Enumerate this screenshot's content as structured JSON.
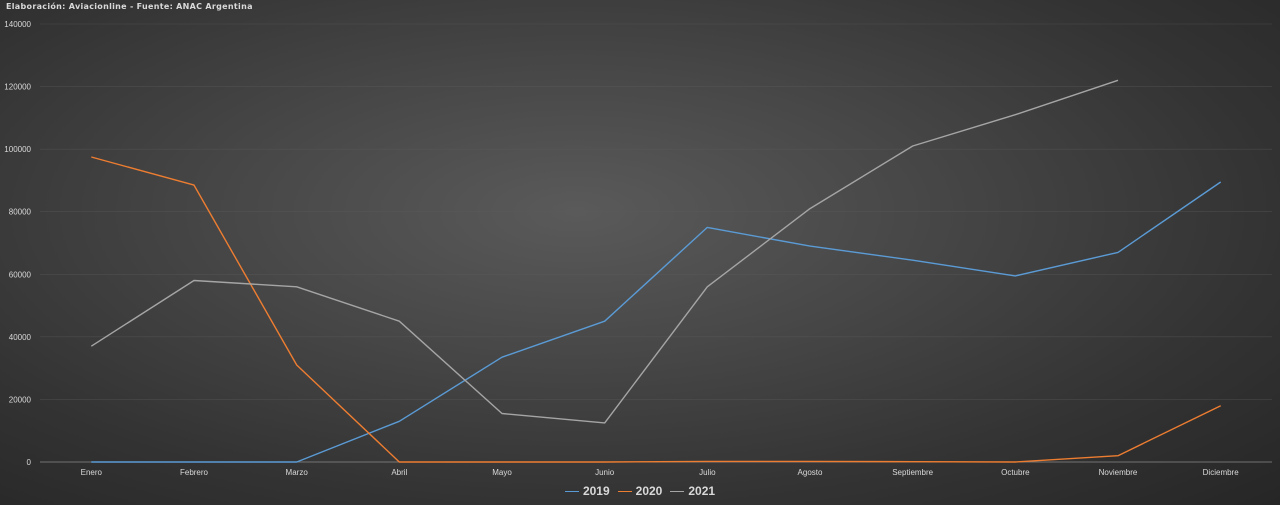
{
  "source_note": "Elaboración: Aviacionline - Fuente: ANAC Argentina",
  "chart_data": {
    "type": "line",
    "title": "",
    "xlabel": "",
    "ylabel": "",
    "categories": [
      "Enero",
      "Febrero",
      "Marzo",
      "Abril",
      "Mayo",
      "Junio",
      "Julio",
      "Agosto",
      "Septiembre",
      "Octubre",
      "Noviembre",
      "Diciembre"
    ],
    "ylim": [
      0,
      140000
    ],
    "yticks": [
      0,
      20000,
      40000,
      60000,
      80000,
      100000,
      120000,
      140000
    ],
    "ytick_labels": [
      "0",
      "20000",
      "40000",
      "60000",
      "80000",
      "100000",
      "120000",
      "140000"
    ],
    "grid": true,
    "legend_position": "bottom",
    "series": [
      {
        "name": "2019",
        "color": "#5b9bd5",
        "values": [
          0,
          0,
          0,
          13000,
          33500,
          45000,
          75000,
          69000,
          64500,
          59500,
          67000,
          89500
        ]
      },
      {
        "name": "2020",
        "color": "#ed7d31",
        "values": [
          97500,
          88500,
          31000,
          0,
          0,
          0,
          200,
          200,
          100,
          0,
          2000,
          18000
        ]
      },
      {
        "name": "2021",
        "color": "#a5a5a5",
        "values": [
          37000,
          58000,
          56000,
          45000,
          15500,
          12500,
          56000,
          81000,
          101000,
          111000,
          122000,
          null
        ]
      }
    ]
  }
}
